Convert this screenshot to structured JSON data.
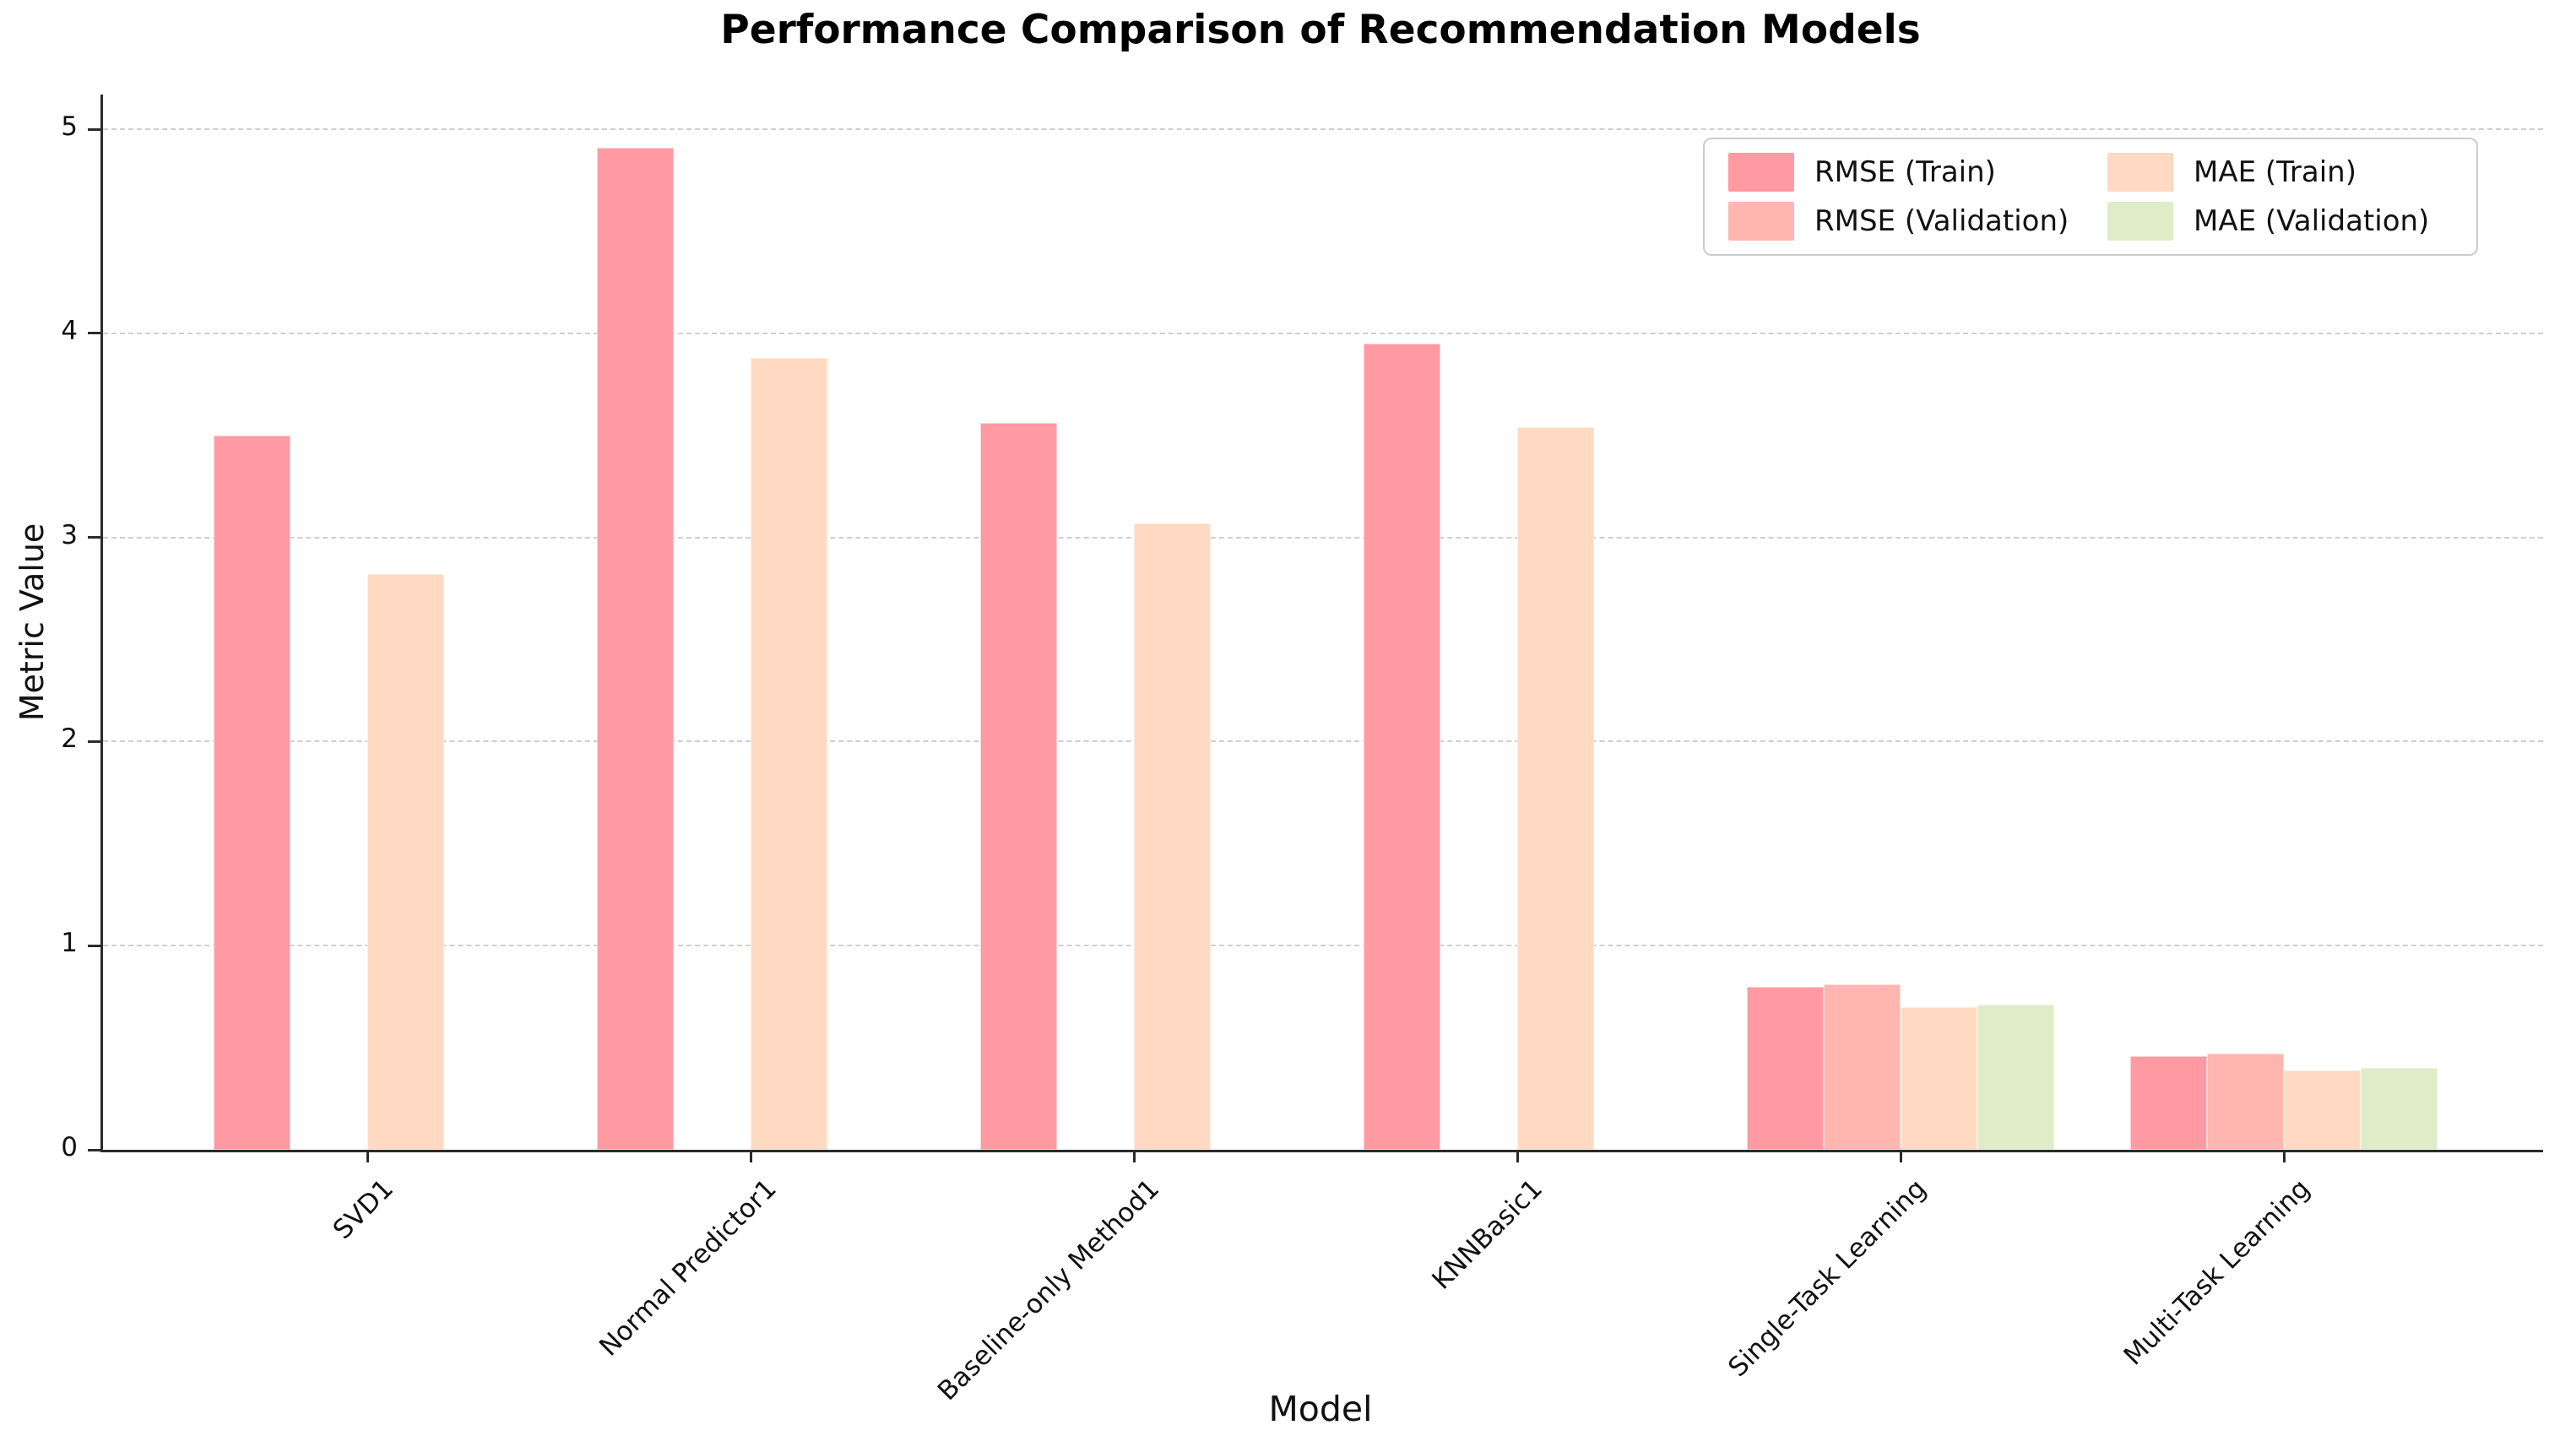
{
  "chart_data": {
    "type": "bar",
    "title": "Performance Comparison of Recommendation Models",
    "xlabel": "Model",
    "ylabel": "Metric Value",
    "categories": [
      "SVD1",
      "Normal Predictor1",
      "Baseline-only Method1",
      "KNNBasic1",
      "Single-Task Learning",
      "Multi-Task Learning"
    ],
    "series": [
      {
        "name": "RMSE (Train)",
        "color": "#FF99A2",
        "values": [
          3.5,
          4.91,
          3.56,
          3.95,
          0.8,
          0.46
        ]
      },
      {
        "name": "RMSE (Validation)",
        "color": "#FFB6B1",
        "values": [
          0,
          0,
          0,
          0,
          0.81,
          0.47
        ]
      },
      {
        "name": "MAE (Train)",
        "color": "#FFD9C1",
        "values": [
          2.82,
          3.88,
          3.07,
          3.54,
          0.7,
          0.39
        ]
      },
      {
        "name": "MAE (Validation)",
        "color": "#DEEDC8",
        "values": [
          0,
          0,
          0,
          0,
          0.71,
          0.4
        ]
      }
    ],
    "yticks": [
      0,
      1,
      2,
      3,
      4,
      5
    ],
    "ylim": [
      0,
      5.17
    ],
    "grid": "horizontal-dashed",
    "legend_position": "upper-right",
    "legend_columns": 2,
    "axis_color": "#2b2b2b",
    "gridline_color": "#cfcfcf"
  }
}
